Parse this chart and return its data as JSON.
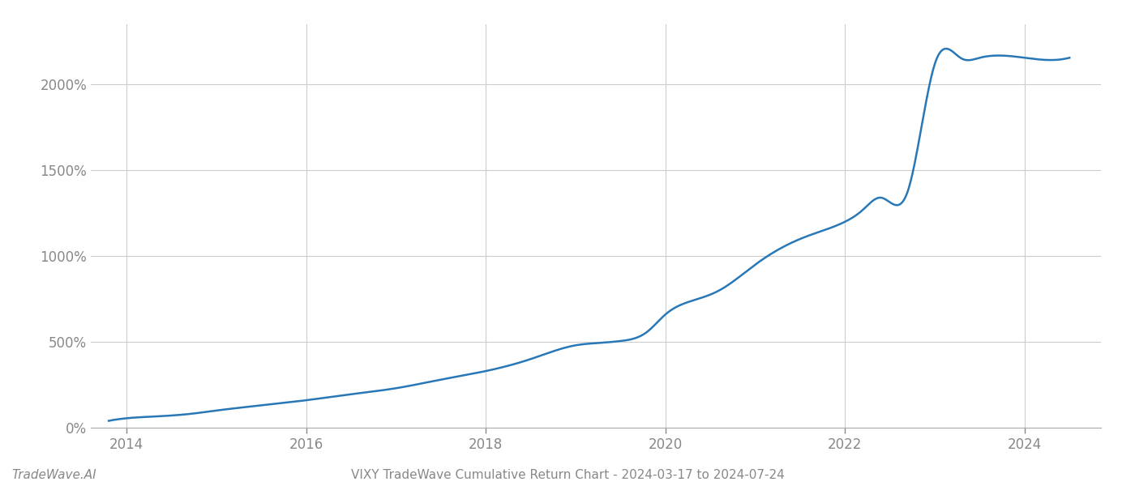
{
  "title": "VIXY TradeWave Cumulative Return Chart - 2024-03-17 to 2024-07-24",
  "watermark": "TradeWave.AI",
  "line_color": "#2878b8",
  "line_width": 1.8,
  "background_color": "#ffffff",
  "grid_color": "#cccccc",
  "x_years": [
    2013.8,
    2014.0,
    2014.3,
    2014.7,
    2015.0,
    2015.5,
    2016.0,
    2016.5,
    2017.0,
    2017.5,
    2018.0,
    2018.5,
    2019.0,
    2019.3,
    2019.5,
    2019.8,
    2020.0,
    2020.3,
    2020.6,
    2021.0,
    2021.3,
    2021.6,
    2022.0,
    2022.2,
    2022.4,
    2022.7,
    2023.0,
    2023.3,
    2023.5,
    2024.0,
    2024.5
  ],
  "y_values": [
    40,
    55,
    65,
    80,
    100,
    130,
    160,
    195,
    230,
    280,
    330,
    400,
    480,
    495,
    505,
    560,
    660,
    740,
    800,
    950,
    1050,
    1120,
    1200,
    1270,
    1340,
    1380,
    2120,
    2150,
    2155,
    2155,
    2155
  ],
  "ylim": [
    0,
    2350
  ],
  "yticks": [
    0,
    500,
    1000,
    1500,
    2000
  ],
  "xlim_start": 2013.6,
  "xlim_end": 2024.85,
  "xlabel_years": [
    2014,
    2016,
    2018,
    2020,
    2022,
    2024
  ],
  "tick_color": "#888888",
  "axis_color": "#333333",
  "title_fontsize": 11,
  "watermark_fontsize": 11,
  "tick_fontsize": 12
}
